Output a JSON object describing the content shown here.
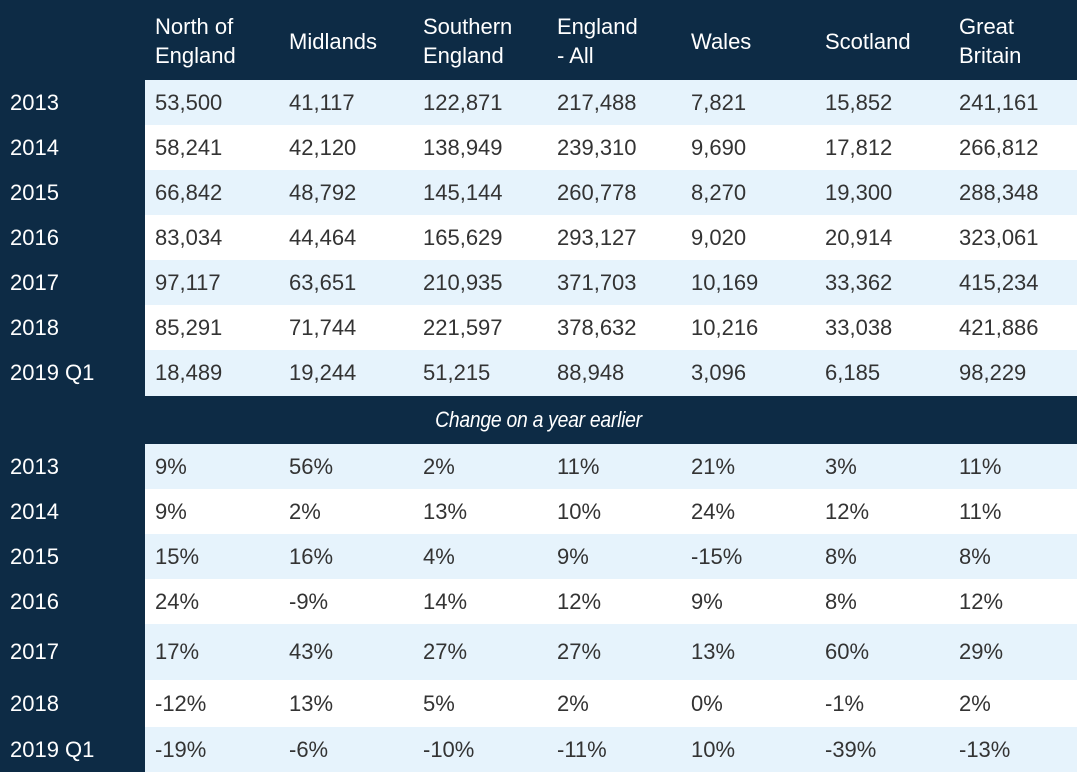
{
  "columns": [
    "",
    "North of England",
    "Midlands",
    "Southern England",
    "England - All",
    "Wales",
    "Scotland",
    "Great Britain"
  ],
  "header_lines": [
    [
      ""
    ],
    [
      "North of",
      "England"
    ],
    [
      "Midlands"
    ],
    [
      "Southern",
      "England"
    ],
    [
      "England",
      "- All"
    ],
    [
      "Wales"
    ],
    [
      "Scotland"
    ],
    [
      "Great",
      "Britain"
    ]
  ],
  "volume_rows": [
    {
      "year": "2013",
      "values": [
        "53,500",
        "41,117",
        "122,871",
        "217,488",
        "7,821",
        "15,852",
        "241,161"
      ]
    },
    {
      "year": "2014",
      "values": [
        "58,241",
        "42,120",
        "138,949",
        "239,310",
        "9,690",
        "17,812",
        "266,812"
      ]
    },
    {
      "year": "2015",
      "values": [
        "66,842",
        "48,792",
        "145,144",
        "260,778",
        "8,270",
        "19,300",
        "288,348"
      ]
    },
    {
      "year": "2016",
      "values": [
        "83,034",
        "44,464",
        "165,629",
        "293,127",
        "9,020",
        "20,914",
        "323,061"
      ]
    },
    {
      "year": "2017",
      "values": [
        "97,117",
        "63,651",
        "210,935",
        "371,703",
        "10,169",
        "33,362",
        "415,234"
      ]
    },
    {
      "year": "2018",
      "values": [
        "85,291",
        "71,744",
        "221,597",
        "378,632",
        "10,216",
        "33,038",
        "421,886"
      ]
    },
    {
      "year": "2019 Q1",
      "values": [
        "18,489",
        "19,244",
        "51,215",
        "88,948",
        "3,096",
        "6,185",
        "98,229"
      ]
    }
  ],
  "section_label": "Change on a year earlier",
  "change_rows": [
    {
      "year": "2013",
      "values": [
        "9%",
        "56%",
        "2%",
        "11%",
        "21%",
        "3%",
        "11%"
      ]
    },
    {
      "year": "2014",
      "values": [
        "9%",
        "2%",
        "13%",
        "10%",
        "24%",
        "12%",
        "11%"
      ]
    },
    {
      "year": "2015",
      "values": [
        "15%",
        "16%",
        "4%",
        "9%",
        "-15%",
        "8%",
        "8%"
      ]
    },
    {
      "year": "2016",
      "values": [
        "24%",
        "-9%",
        "14%",
        "12%",
        "9%",
        "8%",
        "12%"
      ]
    },
    {
      "year": "2017",
      "values": [
        "17%",
        "43%",
        "27%",
        "27%",
        "13%",
        "60%",
        "29%"
      ]
    },
    {
      "year": "2018",
      "values": [
        "-12%",
        "13%",
        "5%",
        "2%",
        "0%",
        "-1%",
        "2%"
      ]
    },
    {
      "year": "2019 Q1",
      "values": [
        "-19%",
        "-6%",
        "-10%",
        "-11%",
        "10%",
        "-39%",
        "-13%"
      ]
    }
  ],
  "colors": {
    "header_bg": "#0d2b45",
    "band_bg": "#e6f3fc",
    "text": "#333333"
  }
}
